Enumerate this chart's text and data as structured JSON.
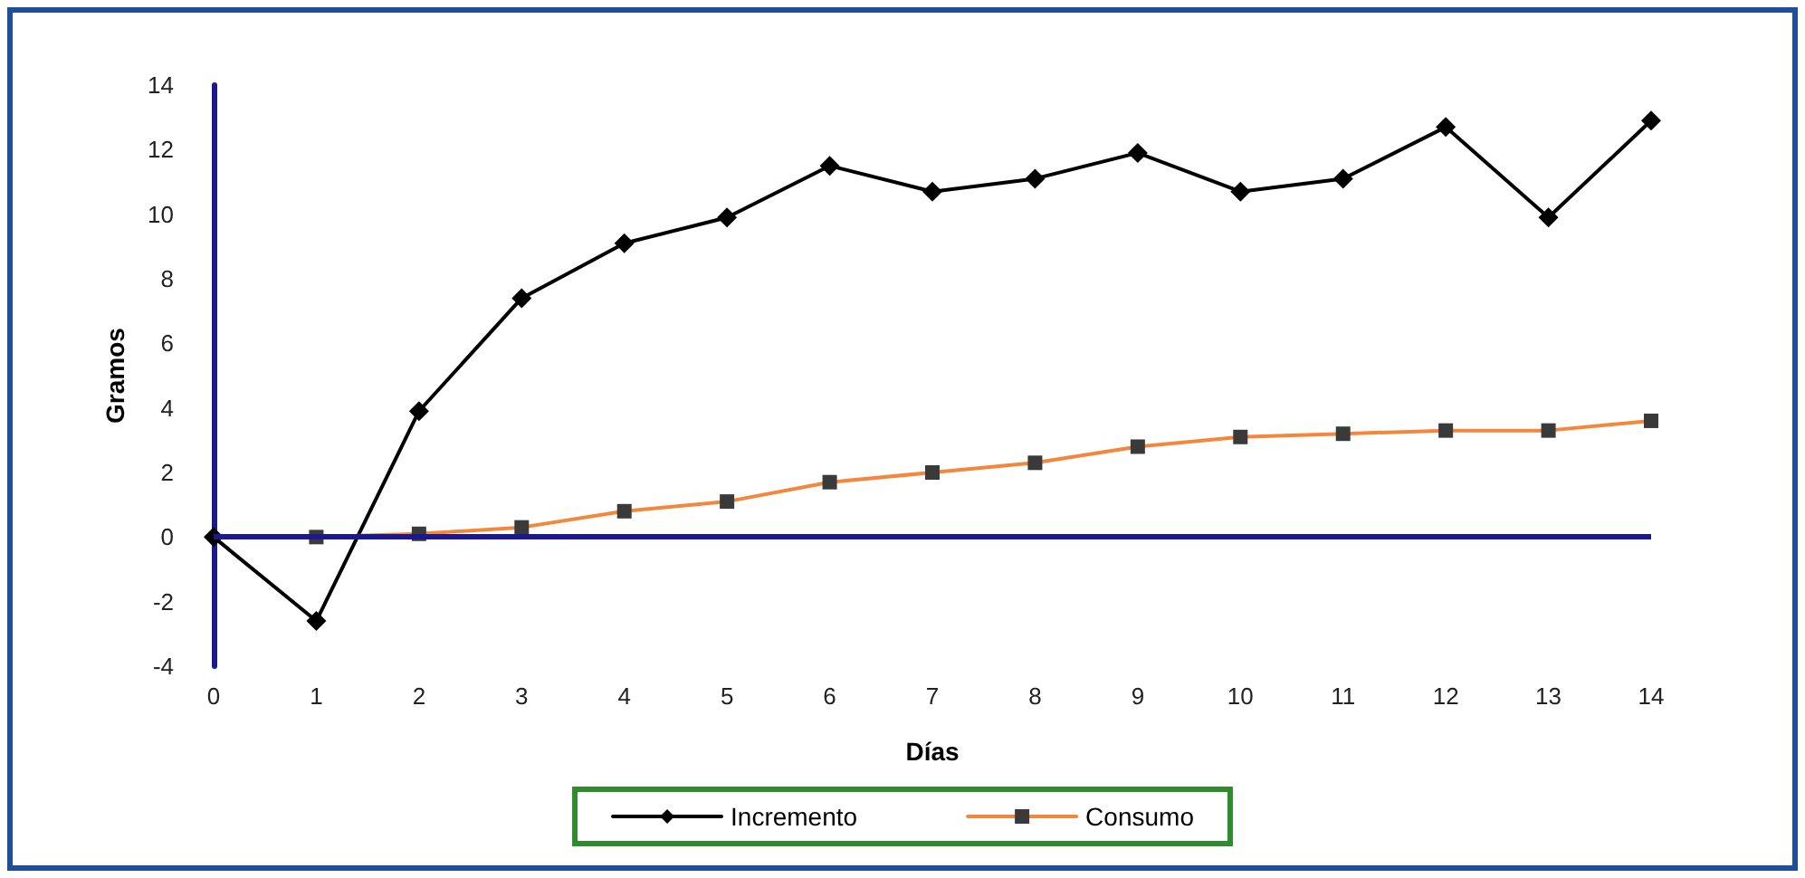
{
  "chart_data": {
    "type": "line",
    "xlabel": "Días",
    "ylabel": "Gramos",
    "x": [
      0,
      1,
      2,
      3,
      4,
      5,
      6,
      7,
      8,
      9,
      10,
      11,
      12,
      13,
      14
    ],
    "series": [
      {
        "name": "Incremento",
        "color": "#000000",
        "marker": "diamond",
        "values": [
          0,
          -2.6,
          3.9,
          7.4,
          9.1,
          9.9,
          11.5,
          10.7,
          11.1,
          11.9,
          10.7,
          11.1,
          12.7,
          9.9,
          12.9
        ]
      },
      {
        "name": "Consumo",
        "color": "#f4873c",
        "marker": "square",
        "values": [
          null,
          0,
          0.1,
          0.3,
          0.8,
          1.1,
          1.7,
          2.0,
          2.3,
          2.8,
          3.1,
          3.2,
          3.3,
          3.3,
          3.6
        ]
      }
    ],
    "xlim": [
      0,
      14
    ],
    "xticks": [
      0,
      1,
      2,
      3,
      4,
      5,
      6,
      7,
      8,
      9,
      10,
      11,
      12,
      13,
      14
    ],
    "ylim": [
      -4,
      14
    ],
    "yticks": [
      -4,
      -2,
      0,
      2,
      4,
      6,
      8,
      10,
      12,
      14
    ],
    "ref_lines": [
      {
        "axis": "y",
        "value": 0,
        "color": "#1a1a8c",
        "line_style": "solid"
      }
    ],
    "grid": false,
    "legend": "bottom",
    "line_style": "solid"
  }
}
